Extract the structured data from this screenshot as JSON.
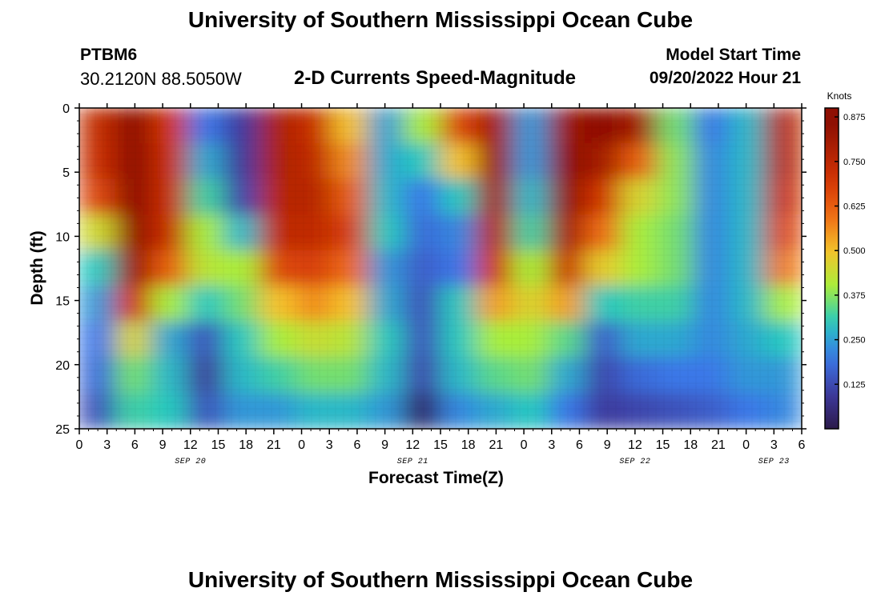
{
  "header": {
    "title": "University of Southern Mississippi Ocean Cube",
    "station": "PTBM6",
    "coords": "30.2120N  88.5050W",
    "subtitle": "2-D Currents Speed-Magnitude",
    "model_start_label": "Model Start Time",
    "model_start_value": "09/20/2022 Hour 21"
  },
  "footer": {
    "title": "University of Southern Mississippi Ocean Cube"
  },
  "chart_data": {
    "type": "heatmap",
    "title": "2-D Currents Speed-Magnitude",
    "xlabel": "Forecast Time(Z)",
    "ylabel": "Depth (ft)",
    "x_range_hours": [
      0,
      78
    ],
    "x_tick_labels": [
      "0",
      "3",
      "6",
      "9",
      "12",
      "15",
      "18",
      "21",
      "0",
      "3",
      "6",
      "9",
      "12",
      "15",
      "18",
      "21",
      "0",
      "3",
      "6",
      "9",
      "12",
      "15",
      "18",
      "21",
      "0",
      "3",
      "6"
    ],
    "date_labels": [
      {
        "label": "SEP 20",
        "at_hour": 12
      },
      {
        "label": "SEP 21",
        "at_hour": 36
      },
      {
        "label": "SEP 22",
        "at_hour": 60
      },
      {
        "label": "SEP 23",
        "at_hour": 75
      }
    ],
    "y_range_ft": [
      0,
      25
    ],
    "y_ticks": [
      0,
      5,
      10,
      15,
      20,
      25
    ],
    "y_inverted": true,
    "colorbar": {
      "title": "Knots",
      "min": 0,
      "max": 0.9,
      "ticks": [
        "0.125",
        "0.250",
        "0.375",
        "0.500",
        "0.625",
        "0.750",
        "0.875"
      ]
    },
    "colors": {
      "0": "#2b1a4a",
      "0.1": "#3e3a9e",
      "0.2": "#3a78e8",
      "0.3": "#27c9c0",
      "0.4": "#a9ee3b",
      "0.5": "#f5c22a",
      "0.6": "#ee6a14",
      "0.7": "#d23404",
      "0.85": "#8f1003"
    },
    "cells": [
      {
        "label": "depth 0-2 ft",
        "values": [
          0.73,
          0.88,
          0.7,
          0.2,
          0.1,
          0.78,
          0.72,
          0.5,
          0.25,
          0.4,
          0.66,
          0.8,
          0.24,
          0.82,
          0.86,
          0.8,
          0.36,
          0.2,
          0.28,
          0.76
        ]
      },
      {
        "label": "depth 2-5 ft",
        "values": [
          0.72,
          0.87,
          0.72,
          0.26,
          0.1,
          0.78,
          0.74,
          0.56,
          0.26,
          0.3,
          0.5,
          0.82,
          0.24,
          0.85,
          0.8,
          0.62,
          0.38,
          0.22,
          0.28,
          0.76
        ]
      },
      {
        "label": "depth 5-8 ft",
        "values": [
          0.66,
          0.85,
          0.72,
          0.32,
          0.12,
          0.76,
          0.76,
          0.62,
          0.28,
          0.2,
          0.3,
          0.8,
          0.28,
          0.84,
          0.7,
          0.46,
          0.38,
          0.22,
          0.28,
          0.72
        ]
      },
      {
        "label": "depth 8-11 ft",
        "values": [
          0.45,
          0.84,
          0.72,
          0.4,
          0.28,
          0.74,
          0.74,
          0.68,
          0.3,
          0.18,
          0.22,
          0.76,
          0.32,
          0.8,
          0.6,
          0.4,
          0.36,
          0.22,
          0.28,
          0.66
        ]
      },
      {
        "label": "depth 11-14 ft",
        "values": [
          0.3,
          0.82,
          0.62,
          0.42,
          0.4,
          0.66,
          0.68,
          0.6,
          0.24,
          0.16,
          0.2,
          0.7,
          0.4,
          0.72,
          0.48,
          0.4,
          0.36,
          0.22,
          0.28,
          0.58
        ]
      },
      {
        "label": "depth 14-17 ft",
        "values": [
          0.24,
          0.7,
          0.4,
          0.3,
          0.36,
          0.5,
          0.56,
          0.5,
          0.26,
          0.14,
          0.3,
          0.54,
          0.46,
          0.54,
          0.3,
          0.32,
          0.32,
          0.22,
          0.28,
          0.4
        ]
      },
      {
        "label": "depth 17-20 ft",
        "values": [
          0.2,
          0.46,
          0.26,
          0.14,
          0.3,
          0.4,
          0.44,
          0.42,
          0.3,
          0.14,
          0.3,
          0.4,
          0.4,
          0.34,
          0.16,
          0.26,
          0.26,
          0.22,
          0.26,
          0.3
        ]
      },
      {
        "label": "depth 20-22 ft",
        "values": [
          0.18,
          0.36,
          0.28,
          0.1,
          0.28,
          0.32,
          0.36,
          0.36,
          0.28,
          0.12,
          0.28,
          0.34,
          0.36,
          0.26,
          0.12,
          0.18,
          0.2,
          0.2,
          0.24,
          0.24
        ]
      },
      {
        "label": "depth 22-25 ft",
        "values": [
          0.14,
          0.32,
          0.3,
          0.14,
          0.24,
          0.24,
          0.28,
          0.28,
          0.24,
          0.04,
          0.22,
          0.26,
          0.3,
          0.2,
          0.1,
          0.12,
          0.14,
          0.16,
          0.2,
          0.22
        ]
      }
    ]
  }
}
